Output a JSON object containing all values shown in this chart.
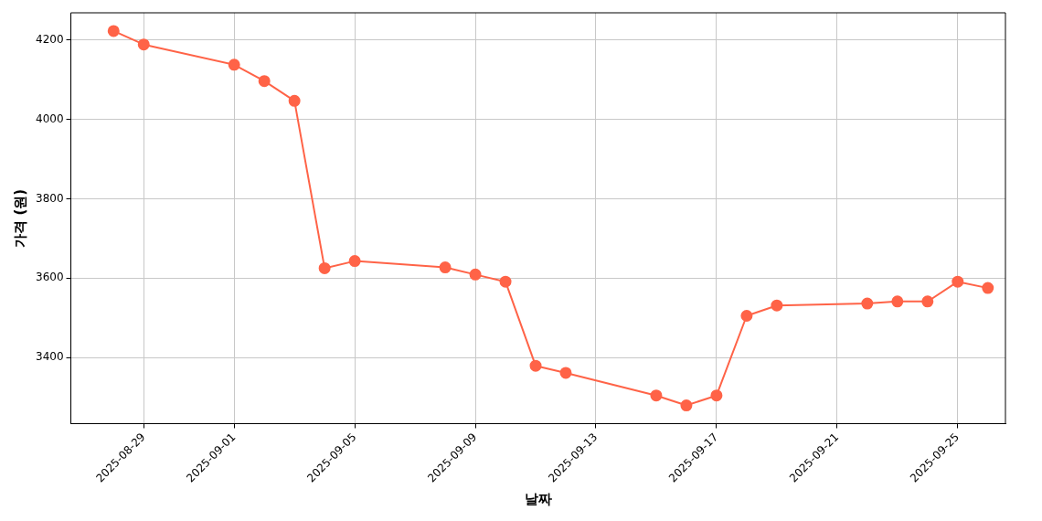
{
  "chart_data": {
    "type": "line",
    "xlabel": "날짜",
    "ylabel": "가격 (원)",
    "x": [
      "2025-08-28",
      "2025-08-29",
      "2025-09-01",
      "2025-09-02",
      "2025-09-03",
      "2025-09-04",
      "2025-09-05",
      "2025-09-08",
      "2025-09-09",
      "2025-09-10",
      "2025-09-11",
      "2025-09-12",
      "2025-09-15",
      "2025-09-16",
      "2025-09-17",
      "2025-09-18",
      "2025-09-19",
      "2025-09-22",
      "2025-09-23",
      "2025-09-24",
      "2025-09-25",
      "2025-09-26"
    ],
    "series": [
      {
        "color": "#ff6347",
        "values": [
          4223,
          4189,
          4138,
          4097,
          4047,
          3625,
          3643,
          3627,
          3609,
          3591,
          3379,
          3361,
          3304,
          3279,
          3304,
          3505,
          3531,
          3536,
          3541,
          3541,
          3591,
          3575
        ]
      }
    ],
    "xlim": [
      "2025-08-26T14:00",
      "2025-09-26T14:00"
    ],
    "xticks": [
      "2025-08-29",
      "2025-09-01",
      "2025-09-05",
      "2025-09-09",
      "2025-09-13",
      "2025-09-17",
      "2025-09-21",
      "2025-09-25"
    ],
    "ylim": [
      3233,
      4269
    ],
    "yticks": [
      3400,
      3600,
      3800,
      4000,
      4200
    ],
    "grid": true,
    "marker": "circle",
    "line_style": "solid"
  }
}
